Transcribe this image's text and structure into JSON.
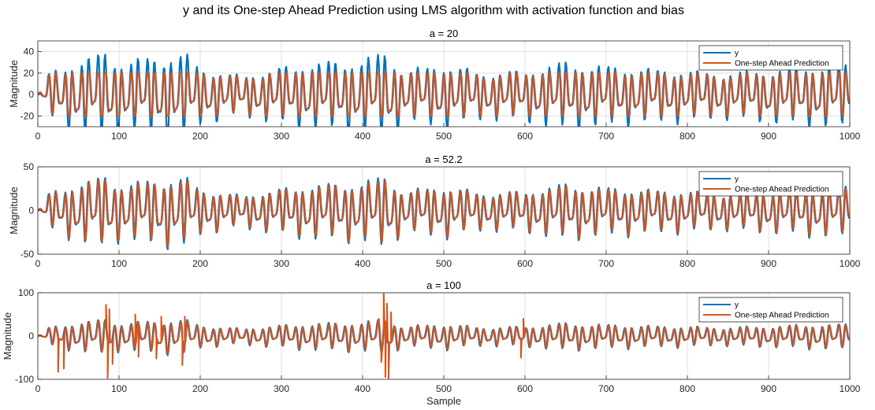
{
  "figure": {
    "title": "y and its One-step Ahead Prediction using LMS algorithm with activation function and bias",
    "xlabel": "Sample"
  },
  "chart_data": [
    {
      "type": "line",
      "title": "a = 20",
      "ylabel": "Magnitude",
      "xlim": [
        0,
        1000
      ],
      "ylim": [
        -30,
        50
      ],
      "xticks": [
        0,
        100,
        200,
        300,
        400,
        500,
        600,
        700,
        800,
        900,
        1000
      ],
      "yticks": [
        -20,
        0,
        20,
        40
      ],
      "grid": true,
      "legend_position": "top-right",
      "prediction_clip": 20,
      "series": [
        {
          "name": "y",
          "color": "#0072BD",
          "envelope_x": [
            0,
            10,
            50,
            85,
            100,
            150,
            180,
            200,
            250,
            300,
            350,
            400,
            430,
            450,
            500,
            550,
            600,
            650,
            700,
            750,
            800,
            850,
            900,
            950,
            995,
            1000
          ],
          "envelope_amp": [
            8,
            18,
            32,
            40,
            30,
            36,
            38,
            25,
            17,
            25,
            30,
            32,
            40,
            22,
            28,
            20,
            22,
            30,
            26,
            24,
            22,
            20,
            23,
            26,
            28,
            20
          ]
        },
        {
          "name": "One-step Ahead Prediction",
          "color": "#D95319",
          "envelope_x": [
            0,
            10,
            50,
            85,
            100,
            150,
            180,
            200,
            250,
            300,
            350,
            400,
            430,
            450,
            500,
            550,
            600,
            650,
            700,
            750,
            800,
            850,
            900,
            950,
            995,
            1000
          ],
          "envelope_amp": [
            8,
            18,
            32,
            40,
            30,
            36,
            38,
            25,
            17,
            25,
            30,
            32,
            40,
            22,
            28,
            20,
            22,
            30,
            26,
            24,
            22,
            20,
            23,
            26,
            28,
            20
          ]
        }
      ]
    },
    {
      "type": "line",
      "title": "a = 52.2",
      "ylabel": "Magnitude",
      "xlim": [
        0,
        1000
      ],
      "ylim": [
        -50,
        50
      ],
      "xticks": [
        0,
        100,
        200,
        300,
        400,
        500,
        600,
        700,
        800,
        900,
        1000
      ],
      "yticks": [
        -50,
        0,
        50
      ],
      "grid": true,
      "legend_position": "top-right",
      "series": [
        {
          "name": "y",
          "color": "#0072BD",
          "envelope_x": [
            0,
            10,
            50,
            85,
            100,
            150,
            180,
            200,
            250,
            300,
            350,
            400,
            430,
            450,
            500,
            550,
            600,
            650,
            700,
            750,
            800,
            850,
            900,
            950,
            995,
            1000
          ],
          "envelope_amp": [
            8,
            18,
            32,
            40,
            30,
            36,
            38,
            25,
            17,
            25,
            30,
            32,
            40,
            22,
            28,
            20,
            22,
            30,
            26,
            24,
            22,
            20,
            23,
            26,
            28,
            20
          ]
        },
        {
          "name": "One-step Ahead Prediction",
          "color": "#D95319",
          "envelope_x": [
            0,
            10,
            50,
            85,
            100,
            150,
            180,
            200,
            250,
            300,
            350,
            400,
            430,
            450,
            500,
            550,
            600,
            650,
            700,
            750,
            800,
            850,
            900,
            950,
            995,
            1000
          ],
          "envelope_amp": [
            8,
            18,
            32,
            40,
            30,
            36,
            38,
            25,
            17,
            25,
            30,
            32,
            40,
            22,
            28,
            20,
            22,
            30,
            26,
            24,
            22,
            20,
            23,
            26,
            28,
            20
          ]
        }
      ]
    },
    {
      "type": "line",
      "title": "a = 100",
      "ylabel": "Magnitude",
      "xlim": [
        0,
        1000
      ],
      "ylim": [
        -100,
        100
      ],
      "xticks": [
        0,
        100,
        200,
        300,
        400,
        500,
        600,
        700,
        800,
        900,
        1000
      ],
      "yticks": [
        -100,
        0,
        100
      ],
      "grid": true,
      "legend_position": "top-right",
      "series": [
        {
          "name": "y",
          "color": "#0072BD",
          "envelope_x": [
            0,
            10,
            50,
            85,
            100,
            150,
            180,
            200,
            250,
            300,
            350,
            400,
            430,
            450,
            500,
            550,
            600,
            650,
            700,
            750,
            800,
            850,
            900,
            950,
            995,
            1000
          ],
          "envelope_amp": [
            8,
            18,
            32,
            40,
            30,
            36,
            38,
            25,
            17,
            25,
            30,
            32,
            40,
            22,
            28,
            20,
            22,
            30,
            26,
            24,
            22,
            20,
            23,
            26,
            28,
            20
          ]
        },
        {
          "name": "One-step Ahead Prediction",
          "color": "#D95319",
          "envelope_x": [
            0,
            10,
            50,
            85,
            100,
            150,
            180,
            200,
            250,
            300,
            350,
            400,
            430,
            450,
            500,
            550,
            600,
            650,
            700,
            750,
            800,
            850,
            900,
            950,
            995,
            1000
          ],
          "envelope_amp": [
            8,
            18,
            32,
            40,
            30,
            36,
            38,
            25,
            17,
            25,
            30,
            32,
            40,
            22,
            28,
            20,
            22,
            30,
            26,
            24,
            22,
            20,
            23,
            26,
            28,
            20
          ],
          "spikes": [
            {
              "x": 25,
              "y": -83
            },
            {
              "x": 32,
              "y": -75
            },
            {
              "x": 84,
              "y": 72
            },
            {
              "x": 86,
              "y": -97
            },
            {
              "x": 88,
              "y": 62
            },
            {
              "x": 92,
              "y": -65
            },
            {
              "x": 120,
              "y": 50
            },
            {
              "x": 124,
              "y": -48
            },
            {
              "x": 146,
              "y": -52
            },
            {
              "x": 152,
              "y": 45
            },
            {
              "x": 178,
              "y": -67
            },
            {
              "x": 181,
              "y": 45
            },
            {
              "x": 420,
              "y": 40
            },
            {
              "x": 423,
              "y": -60
            },
            {
              "x": 426,
              "y": 98
            },
            {
              "x": 428,
              "y": -95
            },
            {
              "x": 430,
              "y": 75
            },
            {
              "x": 432,
              "y": -98
            },
            {
              "x": 435,
              "y": 55
            },
            {
              "x": 595,
              "y": -50
            },
            {
              "x": 598,
              "y": 40
            }
          ]
        }
      ]
    }
  ]
}
